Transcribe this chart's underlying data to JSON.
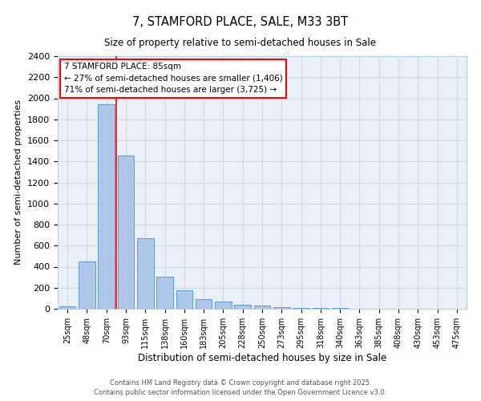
{
  "title": "7, STAMFORD PLACE, SALE, M33 3BT",
  "subtitle": "Size of property relative to semi-detached houses in Sale",
  "xlabel": "Distribution of semi-detached houses by size in Sale",
  "ylabel": "Number of semi-detached properties",
  "bar_labels": [
    "25sqm",
    "48sqm",
    "70sqm",
    "93sqm",
    "115sqm",
    "138sqm",
    "160sqm",
    "183sqm",
    "205sqm",
    "228sqm",
    "250sqm",
    "273sqm",
    "295sqm",
    "318sqm",
    "340sqm",
    "363sqm",
    "385sqm",
    "408sqm",
    "430sqm",
    "453sqm",
    "475sqm"
  ],
  "bar_values": [
    22,
    453,
    1940,
    1455,
    672,
    308,
    178,
    95,
    65,
    40,
    32,
    14,
    5,
    5,
    5,
    0,
    0,
    0,
    0,
    0,
    0
  ],
  "bar_color": "#aec6e8",
  "bar_edge_color": "#5b9bd5",
  "grid_color": "#c8d8e8",
  "bg_color": "#eaf0f8",
  "property_label": "7 STAMFORD PLACE: 85sqm",
  "pct_smaller": 27,
  "count_smaller": 1406,
  "pct_larger": 71,
  "count_larger": 3725,
  "vline_x_index": 2.5,
  "footer_line1": "Contains HM Land Registry data © Crown copyright and database right 2025.",
  "footer_line2": "Contains public sector information licensed under the Open Government Licence v3.0.",
  "ylim": [
    0,
    2400
  ],
  "yticks": [
    0,
    200,
    400,
    600,
    800,
    1000,
    1200,
    1400,
    1600,
    1800,
    2000,
    2200,
    2400
  ]
}
